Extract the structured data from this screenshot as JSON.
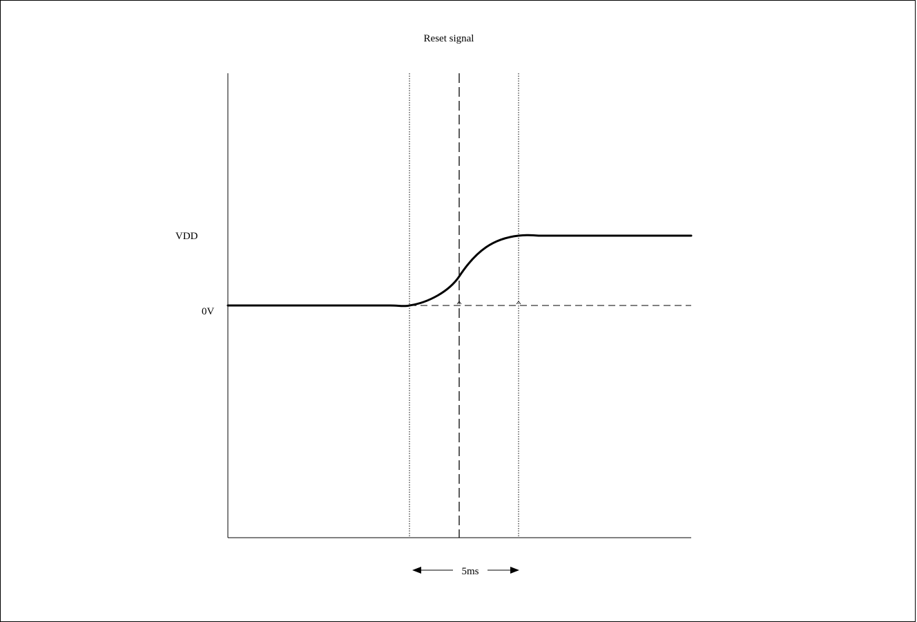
{
  "title": "Reset signal",
  "y_labels": {
    "vdd": "VDD",
    "zero": "0V"
  },
  "interval_label": "5ms",
  "colors": {
    "line": "#000000",
    "background": "#ffffff"
  }
}
